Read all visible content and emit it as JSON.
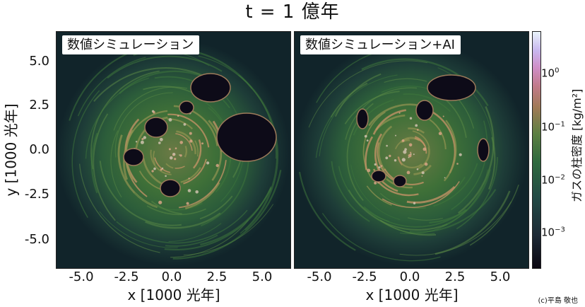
{
  "title": "t = 1 億年",
  "panels": [
    {
      "label": "数値シミュレーション"
    },
    {
      "label": "数値シミュレーション+AI"
    }
  ],
  "credit": "(c)平島 敬也",
  "colorbar": {
    "label": "ガスの柱密度 [kg/m²]",
    "ticks": [
      {
        "base": "10",
        "exp": "0",
        "value": 1
      },
      {
        "base": "10",
        "exp": "−1",
        "value": 0.1
      },
      {
        "base": "10",
        "exp": "−2",
        "value": 0.01
      },
      {
        "base": "10",
        "exp": "−3",
        "value": 0.001
      }
    ],
    "colors": [
      "#0b0712",
      "#234a45",
      "#2f6a3f",
      "#a07a56",
      "#cf8fc8",
      "#e9f3fa"
    ]
  },
  "chart_data": {
    "type": "heatmap",
    "title": "t = 1 億年",
    "xlabel": "x [1000 光年]",
    "ylabel": "y [1000 光年]",
    "xlim": [
      -6.5,
      6.5
    ],
    "ylim": [
      -6.5,
      6.5
    ],
    "xticks": [
      -5.0,
      -2.5,
      0.0,
      2.5,
      5.0
    ],
    "yticks": [
      5.0,
      2.5,
      0.0,
      -2.5,
      -5.0
    ],
    "xtick_labels": [
      "-5.0",
      "-2.5",
      "0.0",
      "2.5",
      "5.0"
    ],
    "ytick_labels": [
      "5.0",
      "2.5",
      "0.0",
      "-2.5",
      "-5.0"
    ],
    "colorbar_scale": "log",
    "panels": [
      "数値シミュレーション",
      "数値シミュレーション+AI"
    ]
  }
}
